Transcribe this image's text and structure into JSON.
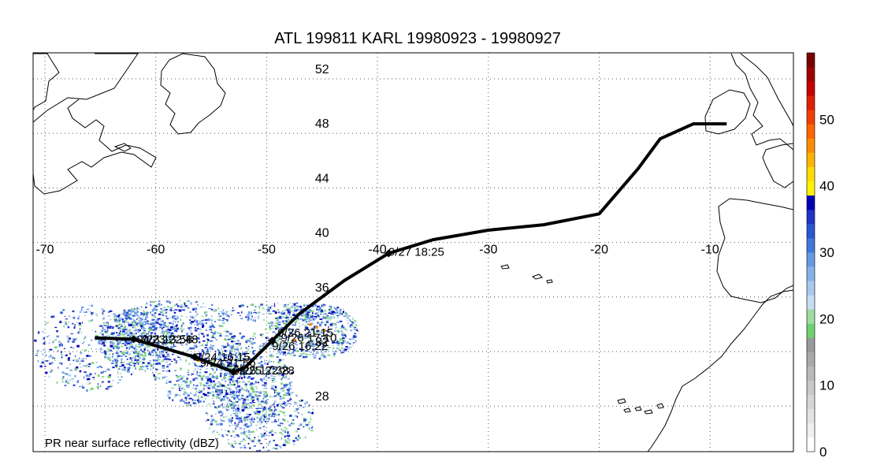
{
  "title": "ATL 199811 KARL 19980923 - 19980927",
  "footer_label": "PR near surface reflectivity (dBZ)",
  "lon_ticks": [
    "-70",
    "-60",
    "-50",
    "-40",
    "-30",
    "-20",
    "-10"
  ],
  "lat_ticks": [
    "52",
    "48",
    "44",
    "40",
    "36",
    "32",
    "28"
  ],
  "colorbar": {
    "tick_labels": [
      "0",
      "10",
      "20",
      "30",
      "40",
      "50"
    ],
    "colors": [
      "#ffffff",
      "#f0f0f0",
      "#e3e3e3",
      "#d6d6d6",
      "#c8c8c8",
      "#b9b9b9",
      "#a9a9a9",
      "#999999",
      "#70d070",
      "#9fdc9f",
      "#c6dcf2",
      "#a8c8ee",
      "#86b2ea",
      "#6699e2",
      "#3f78dc",
      "#2b55d2",
      "#1f33c4",
      "#0000b4",
      "#fff200",
      "#ffdc00",
      "#ffb400",
      "#ff8c00",
      "#ff6400",
      "#f04000",
      "#e02000",
      "#c80000",
      "#a00000",
      "#7a0000"
    ]
  },
  "track": {
    "points": [
      [
        -65.5,
        33.0
      ],
      [
        -62.0,
        32.9
      ],
      [
        -56.5,
        31.6
      ],
      [
        -53.0,
        30.5
      ],
      [
        -52.0,
        30.8
      ],
      [
        -49.5,
        32.8
      ],
      [
        -47.0,
        34.8
      ],
      [
        -43.0,
        37.2
      ],
      [
        -39.0,
        39.2
      ],
      [
        -35.0,
        40.2
      ],
      [
        -30.0,
        40.9
      ],
      [
        -25.0,
        41.3
      ],
      [
        -20.0,
        42.1
      ],
      [
        -16.5,
        45.4
      ],
      [
        -14.5,
        47.6
      ],
      [
        -11.5,
        48.7
      ],
      [
        -8.5,
        48.7
      ]
    ],
    "markers": [
      [
        -62.0,
        32.9
      ],
      [
        -56.5,
        31.6
      ],
      [
        -53.0,
        30.5
      ],
      [
        -49.5,
        32.8
      ],
      [
        -39.0,
        39.2
      ]
    ],
    "labels": [
      {
        "text": "9/23 13:58",
        "lon": -62.0,
        "lat": 32.9
      },
      {
        "text": "9/23 22:48",
        "lon": -61.5,
        "lat": 32.9
      },
      {
        "text": "9/24 16:15",
        "lon": -56.8,
        "lat": 31.6
      },
      {
        "text": "9/24 21:56",
        "lon": -56.3,
        "lat": 31.2
      },
      {
        "text": "9/25 17:38",
        "lon": -53.3,
        "lat": 30.6
      },
      {
        "text": "9/25 22:28",
        "lon": -52.8,
        "lat": 30.6
      },
      {
        "text": "9/26 21:15",
        "lon": -49.3,
        "lat": 33.4
      },
      {
        "text": "9/26 16:22",
        "lon": -49.8,
        "lat": 32.4
      },
      {
        "text": "9/26 17:10",
        "lon": -49.0,
        "lat": 33.0
      },
      {
        "text": "9/27 18:25",
        "lon": -39.3,
        "lat": 39.3
      }
    ]
  }
}
